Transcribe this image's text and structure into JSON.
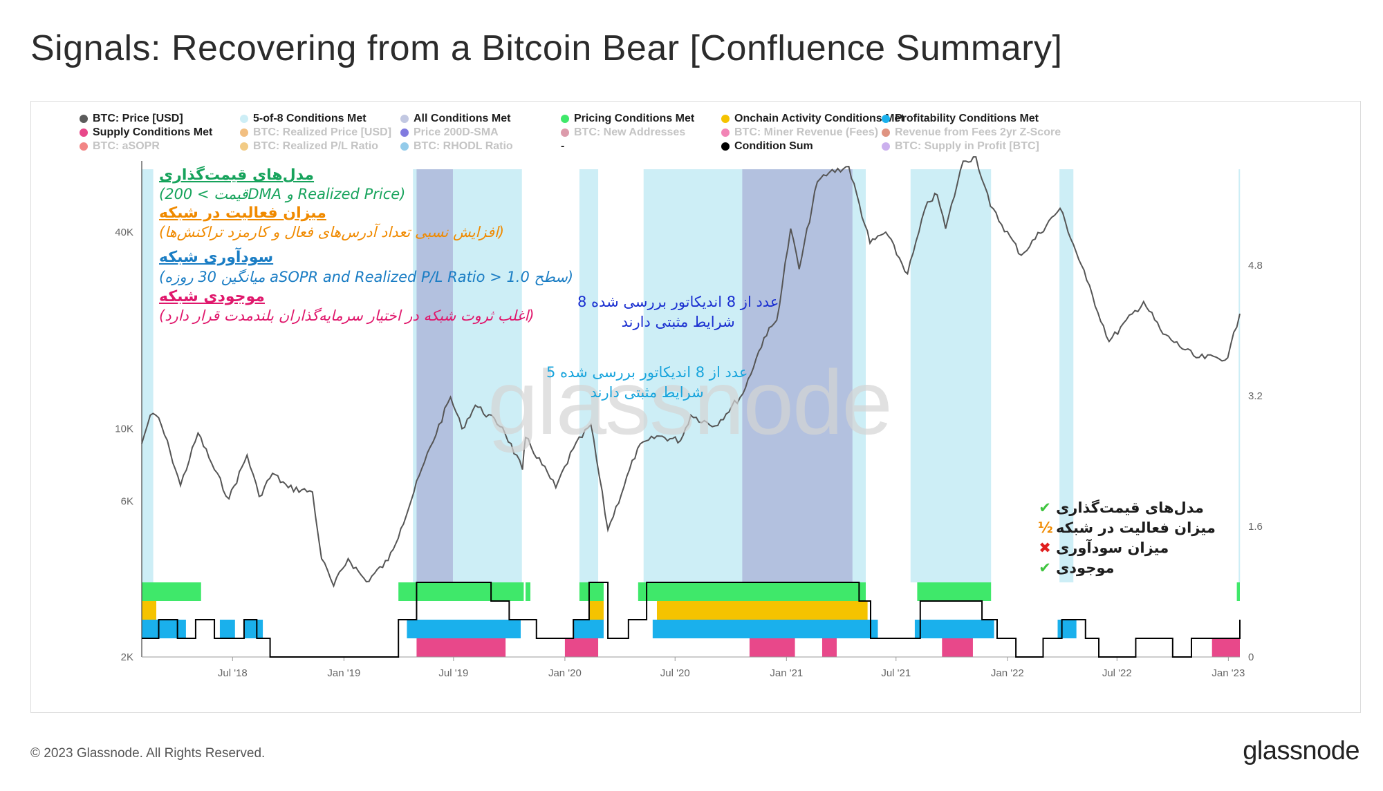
{
  "title": "Signals: Recovering from a Bitcoin Bear [Confluence Summary]",
  "footer": {
    "copyright": "© 2023 Glassnode. All Rights Reserved.",
    "logo": "glassnode"
  },
  "watermark": "glassnode",
  "legend": [
    {
      "label": "BTC: Price [USD]",
      "color": "#5b5b5b",
      "enabled": true
    },
    {
      "label": "5-of-8 Conditions Met",
      "color": "#cdeef6",
      "enabled": true
    },
    {
      "label": "All Conditions Met",
      "color": "#c2c8e2",
      "enabled": true
    },
    {
      "label": "Pricing Conditions Met",
      "color": "#3fe86a",
      "enabled": true
    },
    {
      "label": "Onchain Activity Conditions Met",
      "color": "#f5c300",
      "enabled": true
    },
    {
      "label": "Profitability Conditions Met",
      "color": "#1ab0ec",
      "enabled": true
    },
    {
      "label": "Supply Conditions Met",
      "color": "#e8488a",
      "enabled": true
    },
    {
      "label": "BTC: Realized Price [USD]",
      "color": "#e88a1a",
      "enabled": false
    },
    {
      "label": "Price 200D-SMA",
      "color": "#1a0fc4",
      "enabled": false
    },
    {
      "label": "BTC: New Addresses",
      "color": "#c04866",
      "enabled": false
    },
    {
      "label": "BTC: Miner Revenue (Fees)",
      "color": "#e8207a",
      "enabled": false
    },
    {
      "label": "Revenue from Fees 2yr Z-Score",
      "color": "#c43a1a",
      "enabled": false
    },
    {
      "label": "BTC: aSOPR",
      "color": "#e82020",
      "enabled": false
    },
    {
      "label": "BTC: Realized P/L Ratio",
      "color": "#e8a020",
      "enabled": false
    },
    {
      "label": "BTC: RHODL Ratio",
      "color": "#3aa0d8",
      "enabled": false
    },
    {
      "label": "-",
      "color": "",
      "enabled": true
    },
    {
      "label": "Condition Sum",
      "color": "#000000",
      "enabled": true
    },
    {
      "label": "BTC: Supply in Profit [BTC]",
      "color": "#a070e0",
      "enabled": false
    }
  ],
  "annotations": [
    {
      "heading": "مدل‌های قیمت‌گذاری",
      "sub": "(قیمت > 200DMA و Realized Price)",
      "color": "#17a35c"
    },
    {
      "heading": "میزان فعالیت در شبکه",
      "sub": "(افزایش نسبی تعداد آدرس‌های فعال و کارمزد تراکنش‌ها)",
      "color": "#f08a00"
    },
    {
      "heading": "سودآوری شبکه",
      "sub": "(میانگین 30 روزه aSOPR and Realized P/L Ratio > سطح 1.0)",
      "color": "#1a7dc4"
    },
    {
      "heading": "موجودی شبکه",
      "sub": "(اغلب ثروت شبکه در اختیار سرمایه‌گذاران بلندمدت قرار دارد)",
      "color": "#e0186c"
    }
  ],
  "notes": {
    "all8": [
      "8 عدد از 8 اندیکاتور بررسی شده",
      "شرایط مثبتی دارند"
    ],
    "five8": [
      "5 عدد از 8 اندیکاتور بررسی شده",
      "شرایط مثبتی دارند"
    ],
    "all8_color": "#1a2fd0",
    "five8_color": "#18a4dc"
  },
  "checklist": [
    {
      "label": "مدل‌های قیمت‌گذاری",
      "mark": "✔",
      "mark_color": "#3fc43f"
    },
    {
      "label": "میزان فعالیت در شبکه",
      "mark": "½",
      "mark_color": "#f08a00"
    },
    {
      "label": "میزان سودآوری",
      "mark": "✖",
      "mark_color": "#e01e1e"
    },
    {
      "label": "موجودی",
      "mark": "✔",
      "mark_color": "#3fc43f"
    }
  ],
  "chart_data": {
    "type": "line",
    "y_scale": "log",
    "left_axis": {
      "ticks": [
        "2K",
        "6K",
        "10K",
        "40K"
      ],
      "tick_values": [
        2000,
        6000,
        10000,
        40000
      ]
    },
    "right_axis": {
      "ticks": [
        "0",
        "1.6",
        "3.2",
        "4.8"
      ],
      "tick_values": [
        0,
        1.6,
        3.2,
        4.8
      ]
    },
    "x_axis": {
      "ticks": [
        "Jul '18",
        "Jan '19",
        "Jul '19",
        "Jan '20",
        "Jul '20",
        "Jan '21",
        "Jul '21",
        "Jan '22",
        "Jul '22",
        "Jan '23"
      ]
    },
    "price_series": {
      "name": "BTC: Price [USD]",
      "points": [
        [
          "2018-02-01",
          9000
        ],
        [
          "2018-02-15",
          11000
        ],
        [
          "2018-03-01",
          10800
        ],
        [
          "2018-03-20",
          8500
        ],
        [
          "2018-04-06",
          6700
        ],
        [
          "2018-05-05",
          9700
        ],
        [
          "2018-06-01",
          7500
        ],
        [
          "2018-06-25",
          6100
        ],
        [
          "2018-07-25",
          8300
        ],
        [
          "2018-08-14",
          6200
        ],
        [
          "2018-09-05",
          7300
        ],
        [
          "2018-10-01",
          6600
        ],
        [
          "2018-11-10",
          6400
        ],
        [
          "2018-11-25",
          4000
        ],
        [
          "2018-12-15",
          3300
        ],
        [
          "2019-01-08",
          4000
        ],
        [
          "2019-02-07",
          3400
        ],
        [
          "2019-03-15",
          3950
        ],
        [
          "2019-04-05",
          4950
        ],
        [
          "2019-05-14",
          7900
        ],
        [
          "2019-06-26",
          12500
        ],
        [
          "2019-07-15",
          10000
        ],
        [
          "2019-08-06",
          11800
        ],
        [
          "2019-09-20",
          10100
        ],
        [
          "2019-10-23",
          7500
        ],
        [
          "2019-10-28",
          9400
        ],
        [
          "2019-12-17",
          6600
        ],
        [
          "2020-01-15",
          8700
        ],
        [
          "2020-02-13",
          10300
        ],
        [
          "2020-03-12",
          4900
        ],
        [
          "2020-04-30",
          8700
        ],
        [
          "2020-06-01",
          9500
        ],
        [
          "2020-07-10",
          9200
        ],
        [
          "2020-07-27",
          11000
        ],
        [
          "2020-09-05",
          10200
        ],
        [
          "2020-10-21",
          12800
        ],
        [
          "2020-11-25",
          19000
        ],
        [
          "2020-12-16",
          21500
        ],
        [
          "2021-01-08",
          41000
        ],
        [
          "2021-01-22",
          30800
        ],
        [
          "2021-02-21",
          57000
        ],
        [
          "2021-03-13",
          61000
        ],
        [
          "2021-04-14",
          63500
        ],
        [
          "2021-05-19",
          37000
        ],
        [
          "2021-06-14",
          40000
        ],
        [
          "2021-07-20",
          29800
        ],
        [
          "2021-08-22",
          49500
        ],
        [
          "2021-09-07",
          52000
        ],
        [
          "2021-09-21",
          41000
        ],
        [
          "2021-10-20",
          66000
        ],
        [
          "2021-11-10",
          68000
        ],
        [
          "2021-12-04",
          48000
        ],
        [
          "2022-01-24",
          34000
        ],
        [
          "2022-03-29",
          47300
        ],
        [
          "2022-05-12",
          28500
        ],
        [
          "2022-06-18",
          18500
        ],
        [
          "2022-08-14",
          24500
        ],
        [
          "2022-09-15",
          19500
        ],
        [
          "2022-11-09",
          16500
        ],
        [
          "2022-12-31",
          16500
        ],
        [
          "2023-01-20",
          22500
        ]
      ]
    },
    "condition_sum": {
      "name": "Condition Sum",
      "points": [
        [
          "2018-02-01",
          1
        ],
        [
          "2018-03-01",
          2
        ],
        [
          "2018-04-01",
          1
        ],
        [
          "2018-05-01",
          2
        ],
        [
          "2018-06-01",
          1
        ],
        [
          "2018-07-20",
          2
        ],
        [
          "2018-08-10",
          1
        ],
        [
          "2018-09-01",
          0
        ],
        [
          "2019-02-01",
          0
        ],
        [
          "2019-04-01",
          2
        ],
        [
          "2019-05-01",
          4
        ],
        [
          "2019-07-01",
          4
        ],
        [
          "2019-09-01",
          3
        ],
        [
          "2019-10-01",
          2
        ],
        [
          "2019-11-15",
          1
        ],
        [
          "2020-01-15",
          2
        ],
        [
          "2020-02-10",
          4
        ],
        [
          "2020-03-12",
          1
        ],
        [
          "2020-04-15",
          2
        ],
        [
          "2020-05-15",
          4
        ],
        [
          "2020-07-01",
          4
        ],
        [
          "2020-10-01",
          4
        ],
        [
          "2020-12-01",
          4
        ],
        [
          "2021-03-01",
          4
        ],
        [
          "2021-05-01",
          3
        ],
        [
          "2021-05-20",
          1
        ],
        [
          "2021-07-20",
          1
        ],
        [
          "2021-08-10",
          3
        ],
        [
          "2021-10-15",
          3
        ],
        [
          "2021-11-20",
          2
        ],
        [
          "2021-12-15",
          1
        ],
        [
          "2022-01-15",
          0
        ],
        [
          "2022-03-01",
          1
        ],
        [
          "2022-04-01",
          2
        ],
        [
          "2022-05-10",
          1
        ],
        [
          "2022-06-01",
          0
        ],
        [
          "2022-08-01",
          1
        ],
        [
          "2022-10-01",
          0
        ],
        [
          "2022-11-01",
          1
        ],
        [
          "2022-12-15",
          1
        ],
        [
          "2023-01-20",
          2
        ]
      ]
    },
    "condition_bands": {
      "pricing": [
        [
          "2018-02-01",
          "2018-05-10"
        ],
        [
          "2019-04-01",
          "2019-10-25"
        ],
        [
          "2019-10-28",
          "2019-11-05"
        ],
        [
          "2020-01-25",
          "2020-03-05"
        ],
        [
          "2020-05-01",
          "2021-05-12"
        ],
        [
          "2021-08-05",
          "2021-12-05"
        ],
        [
          "2023-01-15",
          "2023-01-20"
        ]
      ],
      "activity": [
        [
          "2018-02-01",
          "2018-02-25"
        ],
        [
          "2020-02-10",
          "2020-03-05"
        ],
        [
          "2020-06-01",
          "2021-05-15"
        ]
      ],
      "profitability": [
        [
          "2018-02-01",
          "2018-04-15"
        ],
        [
          "2018-06-10",
          "2018-07-05"
        ],
        [
          "2018-07-20",
          "2018-08-20"
        ],
        [
          "2019-04-15",
          "2019-10-20"
        ],
        [
          "2020-01-15",
          "2020-03-05"
        ],
        [
          "2020-05-25",
          "2021-06-01"
        ],
        [
          "2021-08-01",
          "2021-12-10"
        ],
        [
          "2022-03-25",
          "2022-04-25"
        ]
      ],
      "supply": [
        [
          "2019-05-01",
          "2019-09-25"
        ],
        [
          "2020-01-01",
          "2020-02-25"
        ],
        [
          "2020-11-01",
          "2021-01-15"
        ],
        [
          "2021-03-01",
          "2021-03-25"
        ],
        [
          "2021-09-15",
          "2021-11-05"
        ],
        [
          "2022-12-05",
          "2023-01-20"
        ]
      ]
    },
    "signal_bands": {
      "five_of_eight": [
        [
          "2018-02-01",
          "2018-02-20"
        ],
        [
          "2019-04-25",
          "2019-10-22"
        ],
        [
          "2020-01-25",
          "2020-02-25"
        ],
        [
          "2020-05-10",
          "2021-05-12"
        ],
        [
          "2021-07-25",
          "2021-12-05"
        ],
        [
          "2022-03-28",
          "2022-04-20"
        ],
        [
          "2023-01-18",
          "2023-01-20"
        ]
      ],
      "all_conditions": [
        [
          "2019-05-01",
          "2019-06-30"
        ],
        [
          "2020-10-20",
          "2021-04-20"
        ]
      ]
    }
  }
}
